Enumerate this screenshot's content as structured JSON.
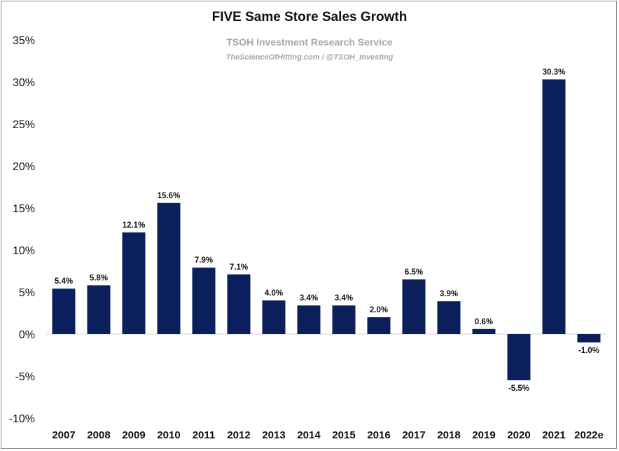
{
  "chart_data": {
    "type": "bar",
    "title": "FIVE Same Store Sales Growth",
    "subtitle": "TSOH Investment Research Service",
    "source": "TheScienceOfHitting.com / @TSOH_Investing",
    "categories": [
      "2007",
      "2008",
      "2009",
      "2010",
      "2011",
      "2012",
      "2013",
      "2014",
      "2015",
      "2016",
      "2017",
      "2018",
      "2019",
      "2020",
      "2021",
      "2022e"
    ],
    "values": [
      5.4,
      5.8,
      12.1,
      15.6,
      7.9,
      7.1,
      4.0,
      3.4,
      3.4,
      2.0,
      6.5,
      3.9,
      0.6,
      -5.5,
      30.3,
      -1.0
    ],
    "data_labels": [
      "5.4%",
      "5.8%",
      "12.1%",
      "15.6%",
      "7.9%",
      "7.1%",
      "4.0%",
      "3.4%",
      "3.4%",
      "2.0%",
      "6.5%",
      "3.9%",
      "0.6%",
      "-5.5%",
      "30.3%",
      "-1.0%"
    ],
    "yticks": [
      "35%",
      "30%",
      "25%",
      "20%",
      "15%",
      "10%",
      "5%",
      "0%",
      "-5%",
      "-10%"
    ],
    "ytick_values": [
      35,
      30,
      25,
      20,
      15,
      10,
      5,
      0,
      -5,
      -10
    ],
    "ylim": [
      -10,
      35
    ],
    "unit": "%",
    "grid": false,
    "legend": "none",
    "bar_color": "#0a1f5c"
  }
}
